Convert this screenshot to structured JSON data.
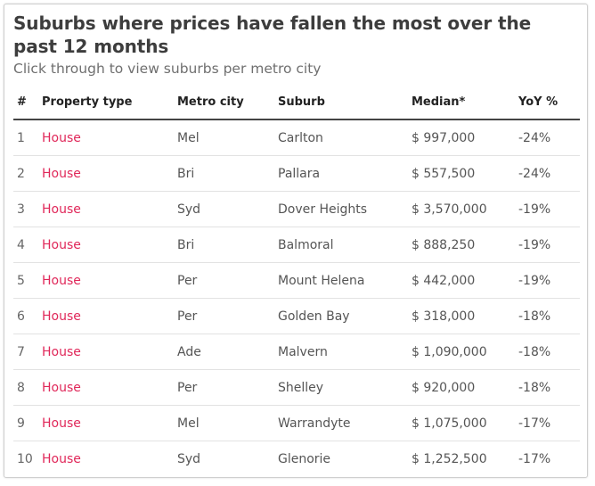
{
  "header": {
    "title": "Suburbs where prices have fallen the most over the past 12 months",
    "subtitle": "Click through to view suburbs per metro city"
  },
  "table": {
    "columns": [
      "#",
      "Property type",
      "Metro city",
      "Suburb",
      "Median*",
      "YoY %"
    ],
    "rows": [
      {
        "num": "1",
        "type": "House",
        "city": "Mel",
        "suburb": "Carlton",
        "median": "$ 997,000",
        "yoy": "-24%"
      },
      {
        "num": "2",
        "type": "House",
        "city": "Bri",
        "suburb": "Pallara",
        "median": "$ 557,500",
        "yoy": "-24%"
      },
      {
        "num": "3",
        "type": "House",
        "city": "Syd",
        "suburb": "Dover Heights",
        "median": "$ 3,570,000",
        "yoy": "-19%"
      },
      {
        "num": "4",
        "type": "House",
        "city": "Bri",
        "suburb": "Balmoral",
        "median": "$ 888,250",
        "yoy": "-19%"
      },
      {
        "num": "5",
        "type": "House",
        "city": "Per",
        "suburb": "Mount Helena",
        "median": "$ 442,000",
        "yoy": "-19%"
      },
      {
        "num": "6",
        "type": "House",
        "city": "Per",
        "suburb": "Golden Bay",
        "median": "$ 318,000",
        "yoy": "-18%"
      },
      {
        "num": "7",
        "type": "House",
        "city": "Ade",
        "suburb": "Malvern",
        "median": "$ 1,090,000",
        "yoy": "-18%"
      },
      {
        "num": "8",
        "type": "House",
        "city": "Per",
        "suburb": "Shelley",
        "median": "$ 920,000",
        "yoy": "-18%"
      },
      {
        "num": "9",
        "type": "House",
        "city": "Mel",
        "suburb": "Warrandyte",
        "median": "$ 1,075,000",
        "yoy": "-17%"
      },
      {
        "num": "10",
        "type": "House",
        "city": "Syd",
        "suburb": "Glenorie",
        "median": "$ 1,252,500",
        "yoy": "-17%"
      }
    ]
  },
  "colors": {
    "property_type_link": "#e0285a",
    "title_text": "#3d3d3d"
  }
}
